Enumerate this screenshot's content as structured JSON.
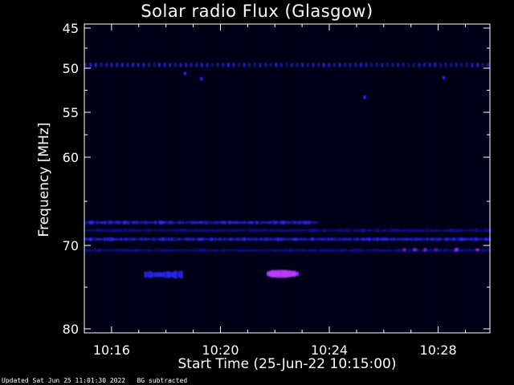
{
  "chart_data": {
    "type": "heatmap",
    "title": "Solar radio Flux (Glasgow)",
    "xlabel": "Start Time (25-Jun-22 10:15:00)",
    "ylabel": "Frequency [MHz]",
    "x_tick_labels": [
      "10:16",
      "10:20",
      "10:24",
      "10:28"
    ],
    "x_ticks_minutes": [
      1,
      5,
      9,
      13
    ],
    "xlim_minutes": [
      0,
      14.9
    ],
    "y_tick_labels": [
      "45",
      "50",
      "55",
      "60",
      "70",
      "80"
    ],
    "y_ticks_mhz": [
      45,
      50,
      55,
      60,
      70,
      80
    ],
    "y_scale": "non-linear (as printed)",
    "colors": {
      "background": "#000014",
      "low": "#1010a0",
      "mid": "#2a2aff",
      "high": "#9a30ff"
    },
    "features": [
      {
        "name": "persistent band",
        "freq_mhz": 49.6,
        "start_min": 0,
        "end_min": 14.9,
        "level": "mid"
      },
      {
        "name": "band",
        "freq_mhz": 67.4,
        "start_min": 0,
        "end_min": 8.5,
        "level": "mid"
      },
      {
        "name": "band",
        "freq_mhz": 68.3,
        "start_min": 0,
        "end_min": 14.9,
        "level": "low"
      },
      {
        "name": "band",
        "freq_mhz": 69.3,
        "start_min": 0,
        "end_min": 14.9,
        "level": "mid"
      },
      {
        "name": "band",
        "freq_mhz": 70.6,
        "start_min": 0,
        "end_min": 14.9,
        "level": "low"
      },
      {
        "name": "burst",
        "freq_mhz": 73.4,
        "start_min": 6.7,
        "end_min": 7.8,
        "level": "high"
      },
      {
        "name": "burst",
        "freq_mhz": 73.5,
        "start_min": 2.2,
        "end_min": 3.6,
        "level": "mid"
      },
      {
        "name": "edge spots",
        "freq_mhz": 70.5,
        "start_min": 11.7,
        "end_min": 14.9,
        "level": "high"
      }
    ]
  },
  "footer": {
    "updated": "Updated Sat Jun 25 11:01:30 2022",
    "bg": "BG subtracted"
  }
}
